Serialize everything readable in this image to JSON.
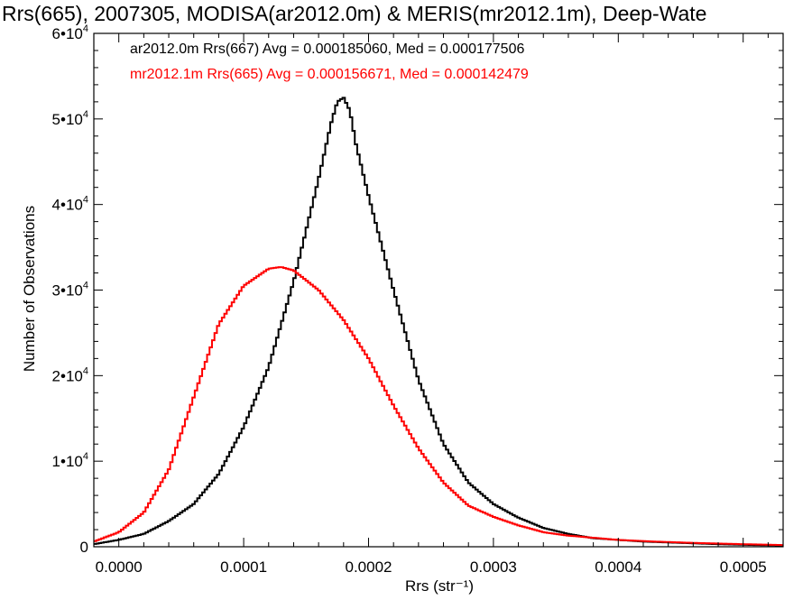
{
  "chart_data": {
    "type": "line",
    "step": true,
    "title": "Rrs(665), 2007305, MODISA(ar2012.0m) & MERIS(mr2012.1m), Deep-Wate",
    "xlabel": "Rrs (str⁻¹)",
    "ylabel": "Number of Observations",
    "xlim": [
      -2e-05,
      0.000532
    ],
    "ylim": [
      0,
      60000
    ],
    "x_ticks": [
      {
        "value": 0.0,
        "label": "0.0000"
      },
      {
        "value": 0.0001,
        "label": "0.0001"
      },
      {
        "value": 0.0002,
        "label": "0.0002"
      },
      {
        "value": 0.0003,
        "label": "0.0003"
      },
      {
        "value": 0.0004,
        "label": "0.0004"
      },
      {
        "value": 0.0005,
        "label": "0.0005"
      }
    ],
    "y_ticks": [
      {
        "value": 0,
        "mantissa": "0",
        "exponent": ""
      },
      {
        "value": 10000,
        "mantissa": "1•10",
        "exponent": "4"
      },
      {
        "value": 20000,
        "mantissa": "2•10",
        "exponent": "4"
      },
      {
        "value": 30000,
        "mantissa": "3•10",
        "exponent": "4"
      },
      {
        "value": 40000,
        "mantissa": "4•10",
        "exponent": "4"
      },
      {
        "value": 50000,
        "mantissa": "5•10",
        "exponent": "4"
      },
      {
        "value": 60000,
        "mantissa": "6•10",
        "exponent": "4"
      }
    ],
    "grid": false,
    "legend_placement": "top-left",
    "series": [
      {
        "name": "ar2012.0m Rrs(667) Avg = 0.000185060, Med = 0.000177506",
        "color": "#000000",
        "points": [
          [
            -2e-05,
            300
          ],
          [
            0.0,
            800
          ],
          [
            2e-05,
            1500
          ],
          [
            4e-05,
            3000
          ],
          [
            6e-05,
            5000
          ],
          [
            8e-05,
            8500
          ],
          [
            0.0001,
            14000
          ],
          [
            0.00012,
            21000
          ],
          [
            0.00014,
            31000
          ],
          [
            0.00016,
            43000
          ],
          [
            0.00017,
            49500
          ],
          [
            0.000175,
            52000
          ],
          [
            0.00018,
            52500
          ],
          [
            0.000185,
            51000
          ],
          [
            0.00019,
            47000
          ],
          [
            0.0002,
            41000
          ],
          [
            0.00022,
            30000
          ],
          [
            0.00024,
            19500
          ],
          [
            0.00026,
            12000
          ],
          [
            0.00028,
            7500
          ],
          [
            0.0003,
            5000
          ],
          [
            0.00032,
            3400
          ],
          [
            0.00034,
            2200
          ],
          [
            0.00036,
            1500
          ],
          [
            0.00038,
            1000
          ],
          [
            0.0004,
            800
          ],
          [
            0.00042,
            600
          ],
          [
            0.00045,
            450
          ],
          [
            0.00048,
            300
          ],
          [
            0.00051,
            200
          ],
          [
            0.000532,
            150
          ]
        ]
      },
      {
        "name": "mr2012.1m Rrs(665) Avg = 0.000156671, Med = 0.000142479",
        "color": "#ff0000",
        "points": [
          [
            -2e-05,
            600
          ],
          [
            0.0,
            1700
          ],
          [
            2e-05,
            4000
          ],
          [
            4e-05,
            9000
          ],
          [
            6e-05,
            17500
          ],
          [
            8e-05,
            26000
          ],
          [
            0.0001,
            30500
          ],
          [
            0.00012,
            32500
          ],
          [
            0.00013,
            32700
          ],
          [
            0.00014,
            32300
          ],
          [
            0.00016,
            30000
          ],
          [
            0.00018,
            26500
          ],
          [
            0.0002,
            22000
          ],
          [
            0.00022,
            16500
          ],
          [
            0.00024,
            11500
          ],
          [
            0.00026,
            7500
          ],
          [
            0.00028,
            4800
          ],
          [
            0.0003,
            3500
          ],
          [
            0.00032,
            2500
          ],
          [
            0.00034,
            1700
          ],
          [
            0.00036,
            1300
          ],
          [
            0.00038,
            1050
          ],
          [
            0.0004,
            800
          ],
          [
            0.00043,
            600
          ],
          [
            0.00046,
            450
          ],
          [
            0.0005,
            300
          ],
          [
            0.000532,
            200
          ]
        ]
      }
    ]
  }
}
